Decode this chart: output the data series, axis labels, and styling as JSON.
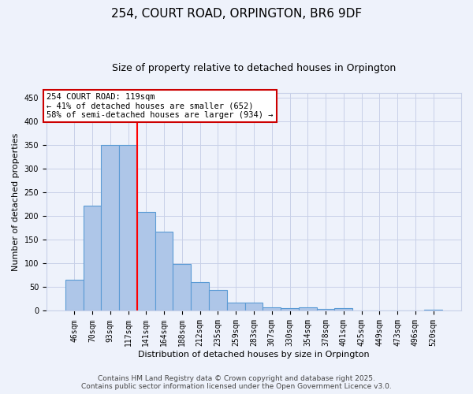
{
  "title": "254, COURT ROAD, ORPINGTON, BR6 9DF",
  "subtitle": "Size of property relative to detached houses in Orpington",
  "xlabel": "Distribution of detached houses by size in Orpington",
  "ylabel": "Number of detached properties",
  "categories": [
    "46sqm",
    "70sqm",
    "93sqm",
    "117sqm",
    "141sqm",
    "164sqm",
    "188sqm",
    "212sqm",
    "235sqm",
    "259sqm",
    "283sqm",
    "307sqm",
    "330sqm",
    "354sqm",
    "378sqm",
    "401sqm",
    "425sqm",
    "449sqm",
    "473sqm",
    "496sqm",
    "520sqm"
  ],
  "values": [
    65,
    222,
    350,
    350,
    208,
    167,
    99,
    60,
    44,
    18,
    17,
    8,
    6,
    7,
    4,
    5,
    0,
    0,
    0,
    0,
    3
  ],
  "bar_color": "#aec6e8",
  "bar_edge_color": "#5b9bd5",
  "background_color": "#eef2fb",
  "grid_color": "#c8d0e8",
  "red_line_x": 3.5,
  "annotation_text": "254 COURT ROAD: 119sqm\n← 41% of detached houses are smaller (652)\n58% of semi-detached houses are larger (934) →",
  "annotation_box_color": "#ffffff",
  "annotation_box_edge_color": "#cc0000",
  "ylim": [
    0,
    460
  ],
  "yticks": [
    0,
    50,
    100,
    150,
    200,
    250,
    300,
    350,
    400,
    450
  ],
  "footer_line1": "Contains HM Land Registry data © Crown copyright and database right 2025.",
  "footer_line2": "Contains public sector information licensed under the Open Government Licence v3.0.",
  "title_fontsize": 11,
  "subtitle_fontsize": 9,
  "axis_label_fontsize": 8,
  "tick_fontsize": 7,
  "annotation_fontsize": 7.5,
  "footer_fontsize": 6.5
}
